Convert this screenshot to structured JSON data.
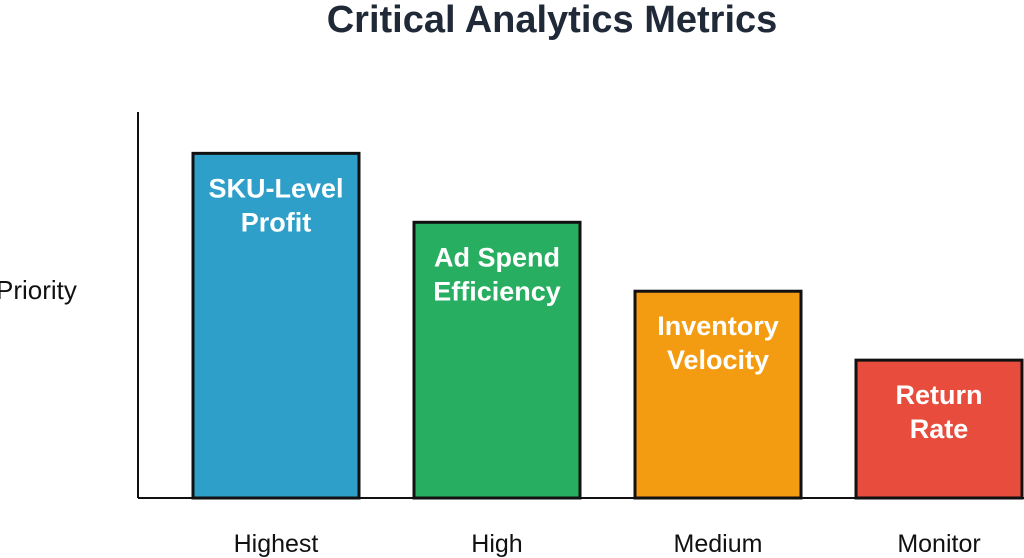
{
  "chart_data": {
    "type": "bar",
    "title": "Critical Analytics Metrics",
    "xlabel": "",
    "ylabel": "Priority",
    "categories": [
      "Highest",
      "High",
      "Medium",
      "Monitor"
    ],
    "values": [
      10,
      8,
      6,
      4
    ],
    "ylim": [
      0,
      11.2
    ],
    "grid": false,
    "legend": "none",
    "bar_labels": [
      [
        "SKU-Level",
        "Profit"
      ],
      [
        "Ad Spend",
        "Efficiency"
      ],
      [
        "Inventory",
        "Velocity"
      ],
      [
        "Return",
        "Rate"
      ]
    ],
    "colors": [
      "#2e9fc9",
      "#27ae60",
      "#f39c12",
      "#e74c3c"
    ]
  }
}
